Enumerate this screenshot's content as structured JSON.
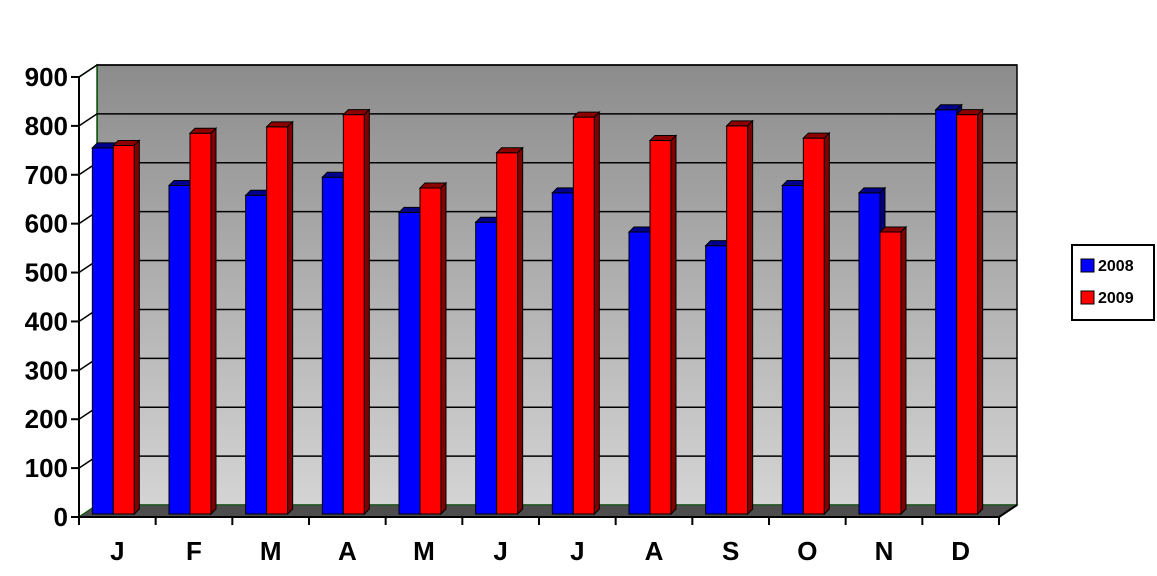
{
  "chart_data": {
    "type": "bar",
    "categories": [
      "J",
      "F",
      "M",
      "A",
      "M",
      "J",
      "J",
      "A",
      "S",
      "O",
      "N",
      "D"
    ],
    "series": [
      {
        "name": "2008",
        "color": "#0000ff",
        "values": [
          755,
          678,
          658,
          695,
          623,
          603,
          663,
          583,
          555,
          678,
          663,
          833
        ]
      },
      {
        "name": "2009",
        "color": "#ff0000",
        "values": [
          760,
          785,
          798,
          823,
          673,
          745,
          818,
          770,
          800,
          775,
          583,
          823
        ]
      }
    ],
    "yticks": [
      0,
      100,
      200,
      300,
      400,
      500,
      600,
      700,
      800,
      900
    ],
    "ylim": [
      0,
      900
    ],
    "grid": true,
    "legend_position": "right",
    "style": "3d-clustered-column",
    "colors": {
      "back_wall_top": "#8c8c8c",
      "back_wall_bottom": "#d4d4d4",
      "floor": "#4d4d4d",
      "axis": "#000000",
      "side_wall": "#0b5d0b"
    }
  }
}
